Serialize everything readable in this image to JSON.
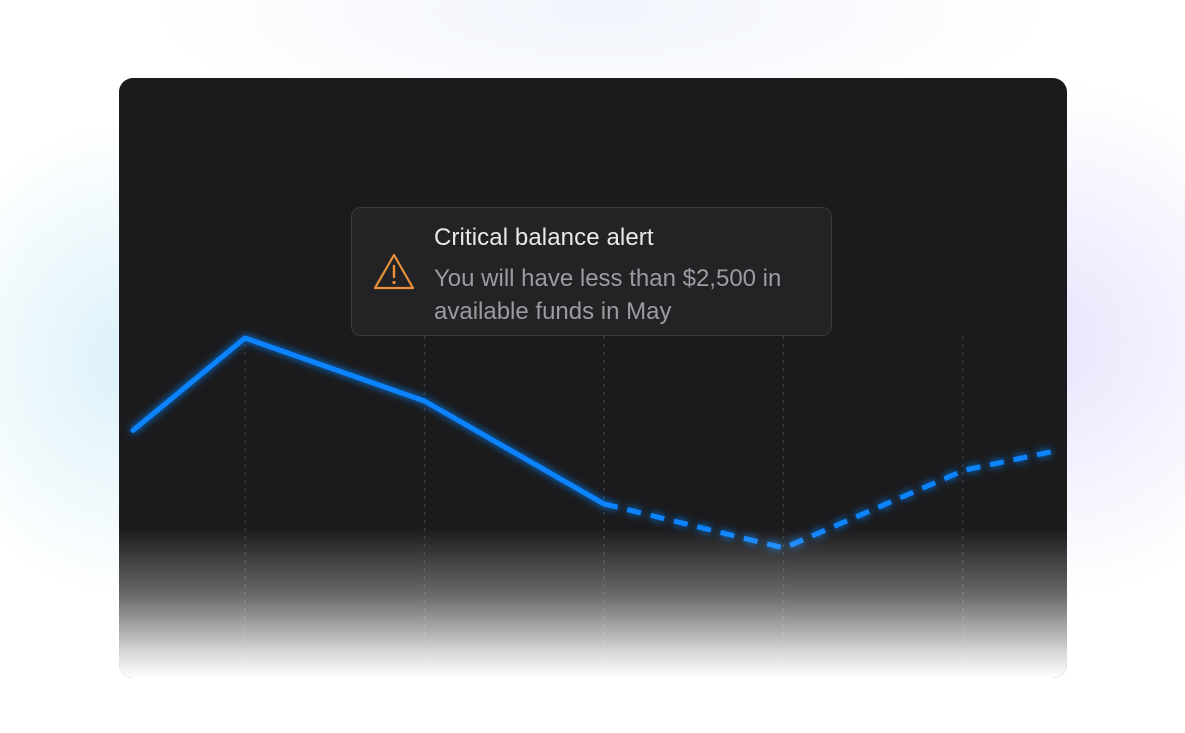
{
  "alert": {
    "title": "Critical balance alert",
    "message": "You will have less than $2,500 in available funds in May",
    "icon": "warning-icon",
    "icon_color": "#e8913a"
  },
  "chart_data": {
    "type": "line",
    "series": [
      {
        "style": "solid",
        "values": [
          0.56,
          1.0,
          0.7,
          0.21
        ]
      },
      {
        "style": "dashed",
        "values": [
          0.21,
          0.0,
          0.37,
          0.46
        ]
      }
    ],
    "line_color": "#0a84ff",
    "grid": "vertical-dotted"
  }
}
